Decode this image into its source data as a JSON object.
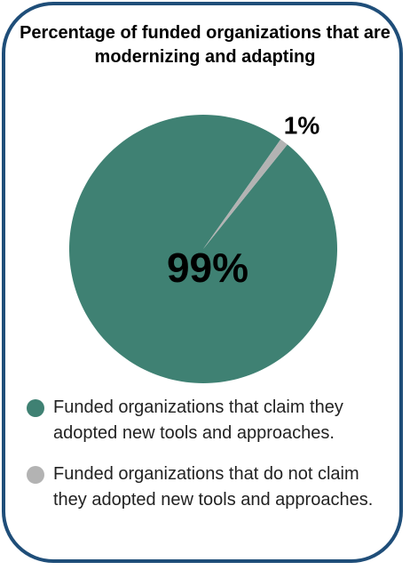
{
  "chart_data": {
    "type": "pie",
    "title": "Percentage of funded organizations that are modernizing and adapting",
    "categories": [
      "Funded organizations that claim they adopted new tools and approaches.",
      "Funded organizations that do not claim they adopted new tools and approaches."
    ],
    "values": [
      99,
      1
    ],
    "value_labels": [
      "99%",
      "1%"
    ],
    "colors": [
      "#3f8173",
      "#b3b3b3"
    ]
  }
}
